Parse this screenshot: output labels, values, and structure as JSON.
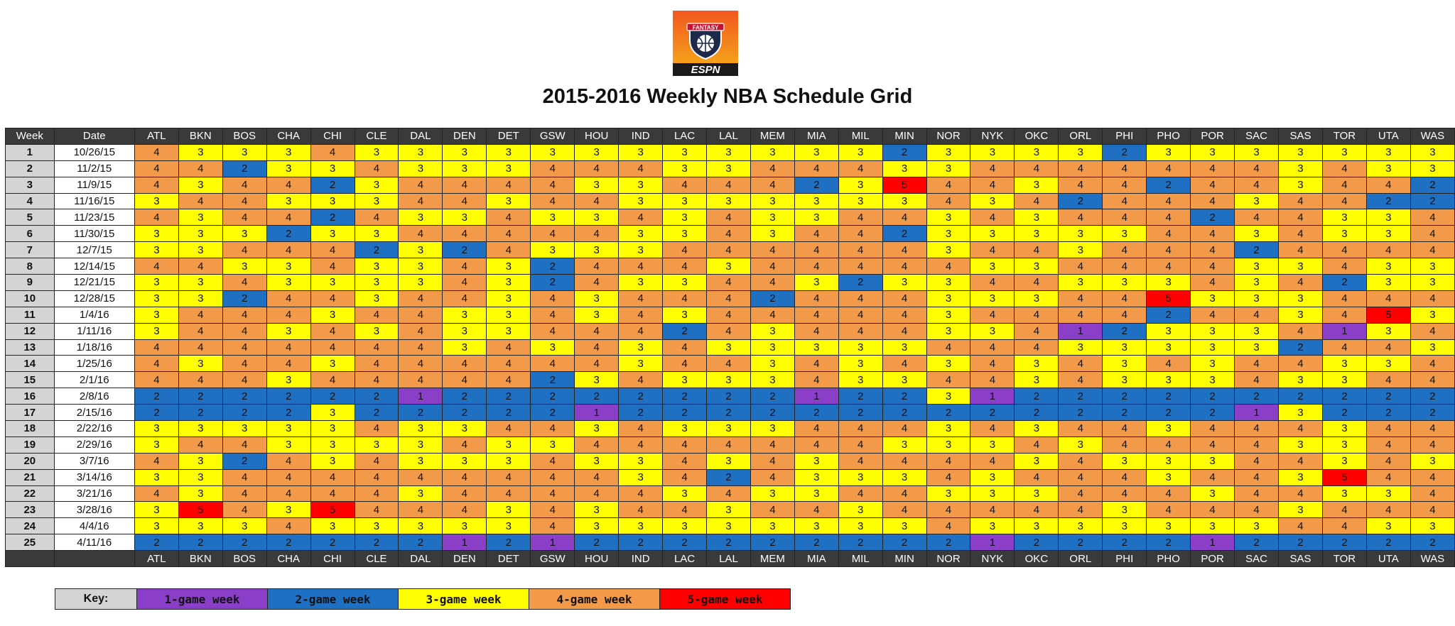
{
  "logo": {
    "top_text": "FANTASY",
    "bottom_text": "ESPN"
  },
  "title": "2015-2016 Weekly NBA Schedule Grid",
  "colors": {
    "1": "#8b3fc8",
    "2": "#1f6fc3",
    "3": "#ffff00",
    "4": "#f39a4a",
    "5": "#ff0000",
    "header_bg": "#3a3a3a",
    "week_bg": "#d4d4d4"
  },
  "grid": {
    "week_header": "Week",
    "date_header": "Date",
    "teams": [
      "ATL",
      "BKN",
      "BOS",
      "CHA",
      "CHI",
      "CLE",
      "DAL",
      "DEN",
      "DET",
      "GSW",
      "HOU",
      "IND",
      "LAC",
      "LAL",
      "MEM",
      "MIA",
      "MIL",
      "MIN",
      "NOR",
      "NYK",
      "OKC",
      "ORL",
      "PHI",
      "PHO",
      "POR",
      "SAC",
      "SAS",
      "TOR",
      "UTA",
      "WAS"
    ],
    "rows": [
      {
        "week": "1",
        "date": "10/26/15",
        "games": [
          4,
          3,
          3,
          3,
          4,
          3,
          3,
          3,
          3,
          3,
          3,
          3,
          3,
          3,
          3,
          3,
          3,
          2,
          3,
          3,
          3,
          3,
          2,
          3,
          3,
          3,
          3,
          3,
          3,
          3
        ]
      },
      {
        "week": "2",
        "date": "11/2/15",
        "games": [
          4,
          4,
          2,
          3,
          3,
          4,
          3,
          3,
          3,
          4,
          4,
          4,
          3,
          3,
          4,
          4,
          4,
          3,
          3,
          4,
          4,
          4,
          4,
          4,
          4,
          4,
          3,
          4,
          3,
          3
        ]
      },
      {
        "week": "3",
        "date": "11/9/15",
        "games": [
          4,
          3,
          4,
          4,
          2,
          3,
          4,
          4,
          4,
          4,
          3,
          3,
          4,
          4,
          4,
          2,
          3,
          5,
          4,
          4,
          3,
          4,
          4,
          2,
          4,
          4,
          3,
          4,
          4,
          2
        ]
      },
      {
        "week": "4",
        "date": "11/16/15",
        "games": [
          3,
          4,
          4,
          3,
          3,
          3,
          4,
          4,
          3,
          4,
          4,
          3,
          3,
          3,
          3,
          3,
          3,
          3,
          4,
          3,
          4,
          2,
          4,
          4,
          4,
          3,
          4,
          4,
          2,
          2
        ]
      },
      {
        "week": "5",
        "date": "11/23/15",
        "games": [
          4,
          3,
          4,
          4,
          2,
          4,
          3,
          3,
          4,
          3,
          3,
          4,
          3,
          4,
          3,
          3,
          4,
          4,
          3,
          4,
          3,
          4,
          4,
          4,
          2,
          4,
          4,
          3,
          3,
          4
        ]
      },
      {
        "week": "6",
        "date": "11/30/15",
        "games": [
          3,
          3,
          3,
          2,
          3,
          3,
          4,
          4,
          4,
          4,
          4,
          3,
          3,
          4,
          3,
          4,
          4,
          2,
          3,
          3,
          3,
          3,
          3,
          4,
          4,
          3,
          4,
          3,
          3,
          4
        ]
      },
      {
        "week": "7",
        "date": "12/7/15",
        "games": [
          3,
          3,
          4,
          4,
          4,
          2,
          3,
          2,
          4,
          3,
          3,
          3,
          4,
          4,
          4,
          4,
          4,
          4,
          3,
          4,
          4,
          3,
          4,
          4,
          4,
          2,
          4,
          4,
          4,
          4
        ]
      },
      {
        "week": "8",
        "date": "12/14/15",
        "games": [
          4,
          4,
          3,
          3,
          4,
          3,
          3,
          4,
          3,
          2,
          4,
          4,
          4,
          3,
          4,
          4,
          4,
          4,
          4,
          3,
          3,
          4,
          4,
          4,
          4,
          3,
          3,
          4,
          3,
          3
        ]
      },
      {
        "week": "9",
        "date": "12/21/15",
        "games": [
          3,
          3,
          4,
          3,
          3,
          3,
          3,
          4,
          3,
          2,
          4,
          3,
          3,
          4,
          4,
          3,
          2,
          3,
          3,
          4,
          4,
          3,
          3,
          3,
          4,
          3,
          4,
          2,
          3,
          3
        ]
      },
      {
        "week": "10",
        "date": "12/28/15",
        "games": [
          3,
          3,
          2,
          4,
          4,
          3,
          4,
          4,
          3,
          4,
          3,
          4,
          4,
          4,
          2,
          4,
          4,
          4,
          3,
          3,
          3,
          4,
          4,
          5,
          3,
          3,
          3,
          4,
          4,
          4
        ]
      },
      {
        "week": "11",
        "date": "1/4/16",
        "games": [
          3,
          4,
          4,
          4,
          3,
          4,
          4,
          3,
          3,
          4,
          3,
          4,
          3,
          4,
          4,
          4,
          4,
          4,
          3,
          4,
          4,
          4,
          4,
          2,
          4,
          4,
          3,
          4,
          5,
          3
        ]
      },
      {
        "week": "12",
        "date": "1/11/16",
        "games": [
          3,
          4,
          4,
          3,
          4,
          3,
          4,
          3,
          3,
          4,
          4,
          4,
          2,
          4,
          3,
          4,
          4,
          4,
          3,
          3,
          4,
          1,
          2,
          3,
          3,
          3,
          4,
          1,
          3,
          4
        ]
      },
      {
        "week": "13",
        "date": "1/18/16",
        "games": [
          4,
          4,
          4,
          4,
          4,
          4,
          4,
          3,
          4,
          3,
          4,
          3,
          4,
          3,
          3,
          3,
          3,
          3,
          4,
          4,
          4,
          3,
          3,
          3,
          3,
          3,
          2,
          4,
          4,
          3
        ]
      },
      {
        "week": "14",
        "date": "1/25/16",
        "games": [
          4,
          3,
          4,
          4,
          3,
          4,
          4,
          4,
          4,
          4,
          4,
          3,
          4,
          4,
          3,
          4,
          3,
          4,
          3,
          4,
          3,
          4,
          3,
          4,
          3,
          4,
          4,
          3,
          3,
          4
        ]
      },
      {
        "week": "15",
        "date": "2/1/16",
        "games": [
          4,
          4,
          4,
          3,
          4,
          4,
          4,
          4,
          4,
          2,
          3,
          4,
          3,
          3,
          3,
          4,
          3,
          3,
          4,
          4,
          3,
          4,
          3,
          3,
          3,
          4,
          3,
          3,
          4,
          4
        ]
      },
      {
        "week": "16",
        "date": "2/8/16",
        "games": [
          2,
          2,
          2,
          2,
          2,
          2,
          1,
          2,
          2,
          2,
          2,
          2,
          2,
          2,
          2,
          1,
          2,
          2,
          3,
          1,
          2,
          2,
          2,
          2,
          2,
          2,
          2,
          2,
          2,
          2
        ]
      },
      {
        "week": "17",
        "date": "2/15/16",
        "games": [
          2,
          2,
          2,
          2,
          3,
          2,
          2,
          2,
          2,
          2,
          1,
          2,
          2,
          2,
          2,
          2,
          2,
          2,
          2,
          2,
          2,
          2,
          2,
          2,
          2,
          1,
          3,
          2,
          2,
          2
        ]
      },
      {
        "week": "18",
        "date": "2/22/16",
        "games": [
          3,
          3,
          3,
          3,
          3,
          4,
          3,
          3,
          4,
          4,
          3,
          4,
          3,
          3,
          3,
          4,
          4,
          4,
          3,
          4,
          3,
          4,
          4,
          3,
          4,
          4,
          4,
          3,
          4,
          4
        ]
      },
      {
        "week": "19",
        "date": "2/29/16",
        "games": [
          3,
          4,
          4,
          3,
          3,
          3,
          3,
          4,
          3,
          3,
          4,
          4,
          4,
          4,
          4,
          4,
          4,
          3,
          3,
          3,
          4,
          3,
          4,
          4,
          4,
          4,
          3,
          3,
          4,
          4
        ]
      },
      {
        "week": "20",
        "date": "3/7/16",
        "games": [
          4,
          3,
          2,
          4,
          3,
          4,
          3,
          3,
          3,
          4,
          3,
          3,
          4,
          3,
          4,
          3,
          4,
          4,
          4,
          4,
          3,
          4,
          3,
          3,
          3,
          4,
          4,
          3,
          4,
          3
        ]
      },
      {
        "week": "21",
        "date": "3/14/16",
        "games": [
          3,
          3,
          4,
          4,
          4,
          4,
          4,
          4,
          4,
          4,
          4,
          3,
          4,
          2,
          4,
          3,
          3,
          3,
          4,
          3,
          4,
          4,
          4,
          3,
          4,
          4,
          3,
          5,
          4,
          4
        ]
      },
      {
        "week": "22",
        "date": "3/21/16",
        "games": [
          4,
          3,
          4,
          4,
          4,
          4,
          3,
          4,
          4,
          4,
          4,
          4,
          3,
          4,
          3,
          3,
          4,
          4,
          3,
          3,
          3,
          4,
          4,
          4,
          3,
          4,
          4,
          3,
          3,
          4
        ]
      },
      {
        "week": "23",
        "date": "3/28/16",
        "games": [
          3,
          5,
          4,
          3,
          5,
          4,
          4,
          4,
          3,
          4,
          3,
          4,
          4,
          3,
          4,
          4,
          3,
          4,
          4,
          4,
          4,
          4,
          3,
          4,
          4,
          4,
          3,
          4,
          4,
          4
        ]
      },
      {
        "week": "24",
        "date": "4/4/16",
        "games": [
          3,
          3,
          3,
          4,
          3,
          3,
          3,
          3,
          3,
          4,
          3,
          3,
          3,
          3,
          3,
          3,
          3,
          3,
          4,
          3,
          3,
          3,
          3,
          3,
          3,
          3,
          4,
          4,
          3,
          3
        ]
      },
      {
        "week": "25",
        "date": "4/11/16",
        "games": [
          2,
          2,
          2,
          2,
          2,
          2,
          2,
          1,
          2,
          1,
          2,
          2,
          2,
          2,
          2,
          2,
          2,
          2,
          2,
          1,
          2,
          2,
          2,
          2,
          1,
          2,
          2,
          2,
          2,
          2
        ]
      }
    ]
  },
  "key": {
    "label": "Key:",
    "items": [
      {
        "games": 1,
        "label": "1-game week"
      },
      {
        "games": 2,
        "label": "2-game week"
      },
      {
        "games": 3,
        "label": "3-game week"
      },
      {
        "games": 4,
        "label": "4-game week"
      },
      {
        "games": 5,
        "label": "5-game week"
      }
    ]
  }
}
